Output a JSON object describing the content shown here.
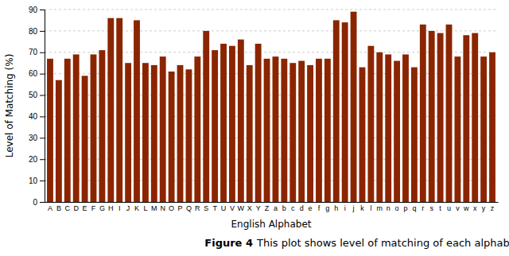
{
  "chart_data": {
    "type": "bar",
    "categories": [
      "A",
      "B",
      "C",
      "D",
      "E",
      "F",
      "G",
      "H",
      "I",
      "J",
      "K",
      "L",
      "M",
      "N",
      "O",
      "P",
      "Q",
      "R",
      "S",
      "T",
      "U",
      "V",
      "W",
      "X",
      "Y",
      "Z",
      "a",
      "b",
      "c",
      "d",
      "e",
      "f",
      "g",
      "h",
      "i",
      "j",
      "k",
      "l",
      "m",
      "n",
      "o",
      "p",
      "q",
      "r",
      "s",
      "t",
      "u",
      "v",
      "w",
      "x",
      "y",
      "z"
    ],
    "values": [
      67,
      57,
      67,
      69,
      59,
      69,
      71,
      86,
      86,
      65,
      85,
      65,
      64,
      68,
      61,
      64,
      62,
      68,
      80,
      71,
      74,
      73,
      76,
      64,
      74,
      67,
      68,
      67,
      65,
      66,
      64,
      67,
      67,
      85,
      84,
      89,
      63,
      73,
      70,
      69,
      66,
      69,
      63,
      83,
      80,
      79,
      83,
      68,
      78,
      79,
      68,
      70
    ],
    "color": "#8B2500",
    "xlabel": "English Alphabet",
    "ylabel": "Level of Matching (%)",
    "ylim": [
      0,
      90
    ],
    "yticks": [
      0,
      10,
      20,
      30,
      40,
      50,
      60,
      70,
      80,
      90
    ],
    "grid": true,
    "annotations": [
      "Figure 4",
      "This plot shows level of matching of each alphabet"
    ]
  }
}
